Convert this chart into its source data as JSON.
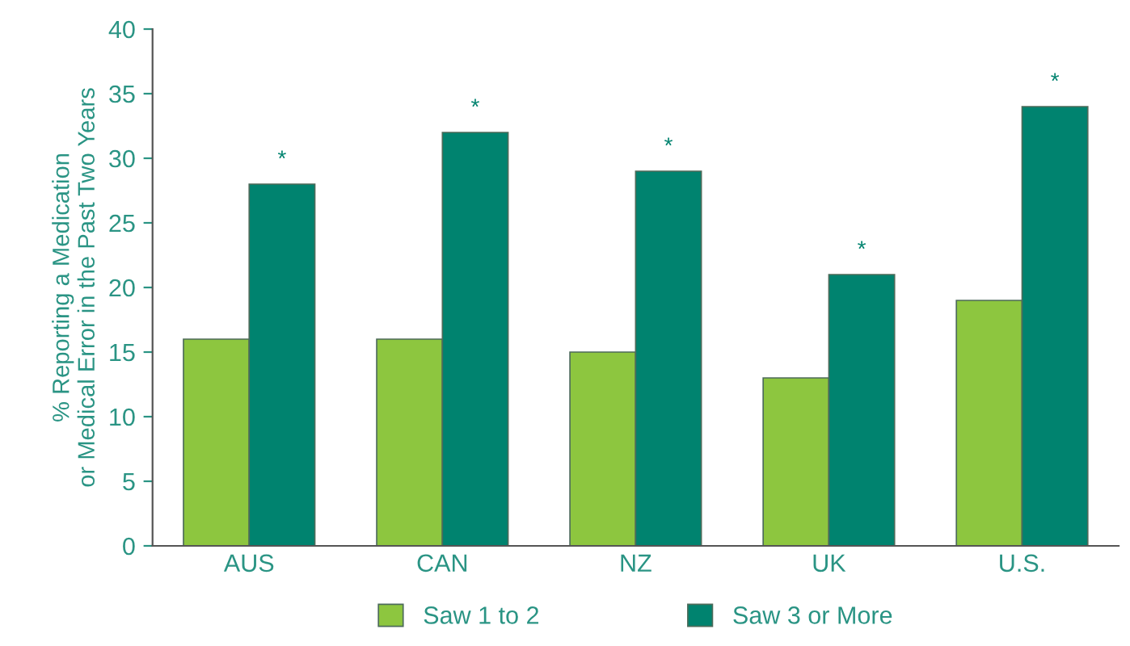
{
  "chart_data": {
    "type": "bar",
    "ylabel": "% Reporting a Medication\nor Medical Error in the Past Two Years",
    "categories": [
      "AUS",
      "CAN",
      "NZ",
      "UK",
      "U.S."
    ],
    "series": [
      {
        "name": "Saw 1 to 2",
        "color": "#8dc63f",
        "values": [
          16,
          16,
          15,
          13,
          19
        ]
      },
      {
        "name": "Saw 3 or More",
        "color": "#00836f",
        "values": [
          28,
          32,
          29,
          21,
          34
        ]
      }
    ],
    "annotations": [
      {
        "text": "*",
        "x": "AUS",
        "y": 28
      },
      {
        "text": "*",
        "x": "CAN",
        "y": 32
      },
      {
        "text": "*",
        "x": "NZ",
        "y": 29
      },
      {
        "text": "*",
        "x": "UK",
        "y": 21
      },
      {
        "text": "*",
        "x": "U.S.",
        "y": 34
      }
    ],
    "ylim": [
      0,
      40
    ],
    "yticks": [
      0,
      5,
      10,
      15,
      20,
      25,
      30,
      35,
      40
    ],
    "grid": false,
    "legend": "bottom"
  }
}
